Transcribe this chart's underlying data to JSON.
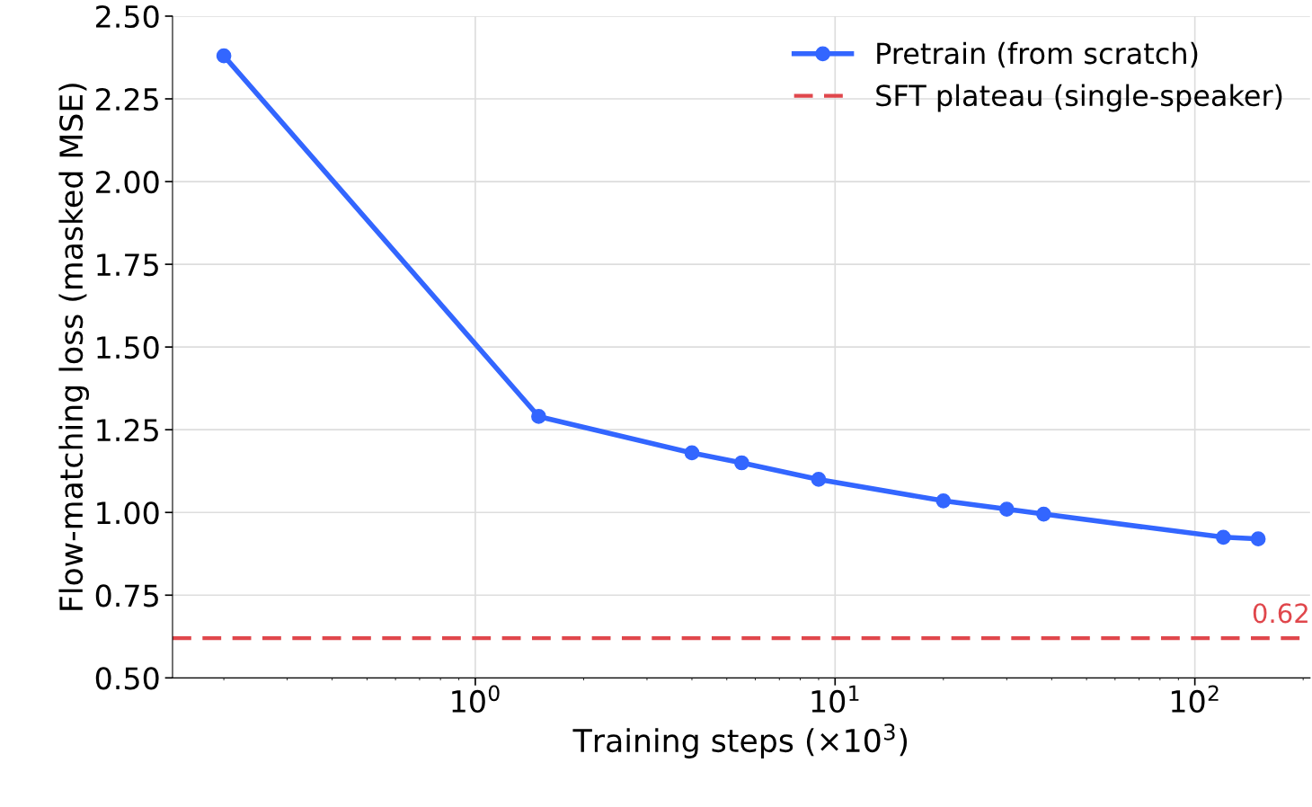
{
  "chart_data": {
    "type": "line",
    "xlabel": "Training steps (×10$^{3}$)",
    "ylabel": "Flow-matching loss (masked MSE)",
    "log": "x",
    "xlim": [
      0.144,
      209
    ],
    "xticks": [
      {
        "value": 1,
        "label": "10$^{0}$"
      },
      {
        "value": 10,
        "label": "10$^{1}$"
      },
      {
        "value": 100,
        "label": "10$^{2}$"
      }
    ],
    "ylim": [
      0.5,
      2.5
    ],
    "yticks": [
      {
        "value": 0.5,
        "label": "0.50"
      },
      0.75,
      {
        "value": 1,
        "label": "1.00"
      },
      1.25,
      {
        "value": 1.5,
        "label": "1.50"
      },
      1.75,
      {
        "value": 2,
        "label": "2.00"
      },
      2.25,
      {
        "value": 2.5,
        "label": "2.50"
      }
    ],
    "annotations": [
      {
        "text": "0.62",
        "x": 209,
        "y": 0.62
      }
    ],
    "grid": true,
    "legend": "top right",
    "marker": "circle",
    "line_style": "solid",
    "series": [
      {
        "name": "Pretrain (from scratch)",
        "color": "#3366ff",
        "x": [
          0.2,
          1.5,
          4,
          5.5,
          9,
          20,
          30,
          38,
          120,
          150
        ],
        "values": [
          2.38,
          1.29,
          1.18,
          1.15,
          1.1,
          1.035,
          1.01,
          0.995,
          0.925,
          0.92
        ]
      }
    ],
    "ref_lines": [
      {
        "axis": "y",
        "value": 0.62,
        "label": "SFT plateau (single-speaker)",
        "color": "#e0474c",
        "line_style": "dashed"
      }
    ]
  }
}
